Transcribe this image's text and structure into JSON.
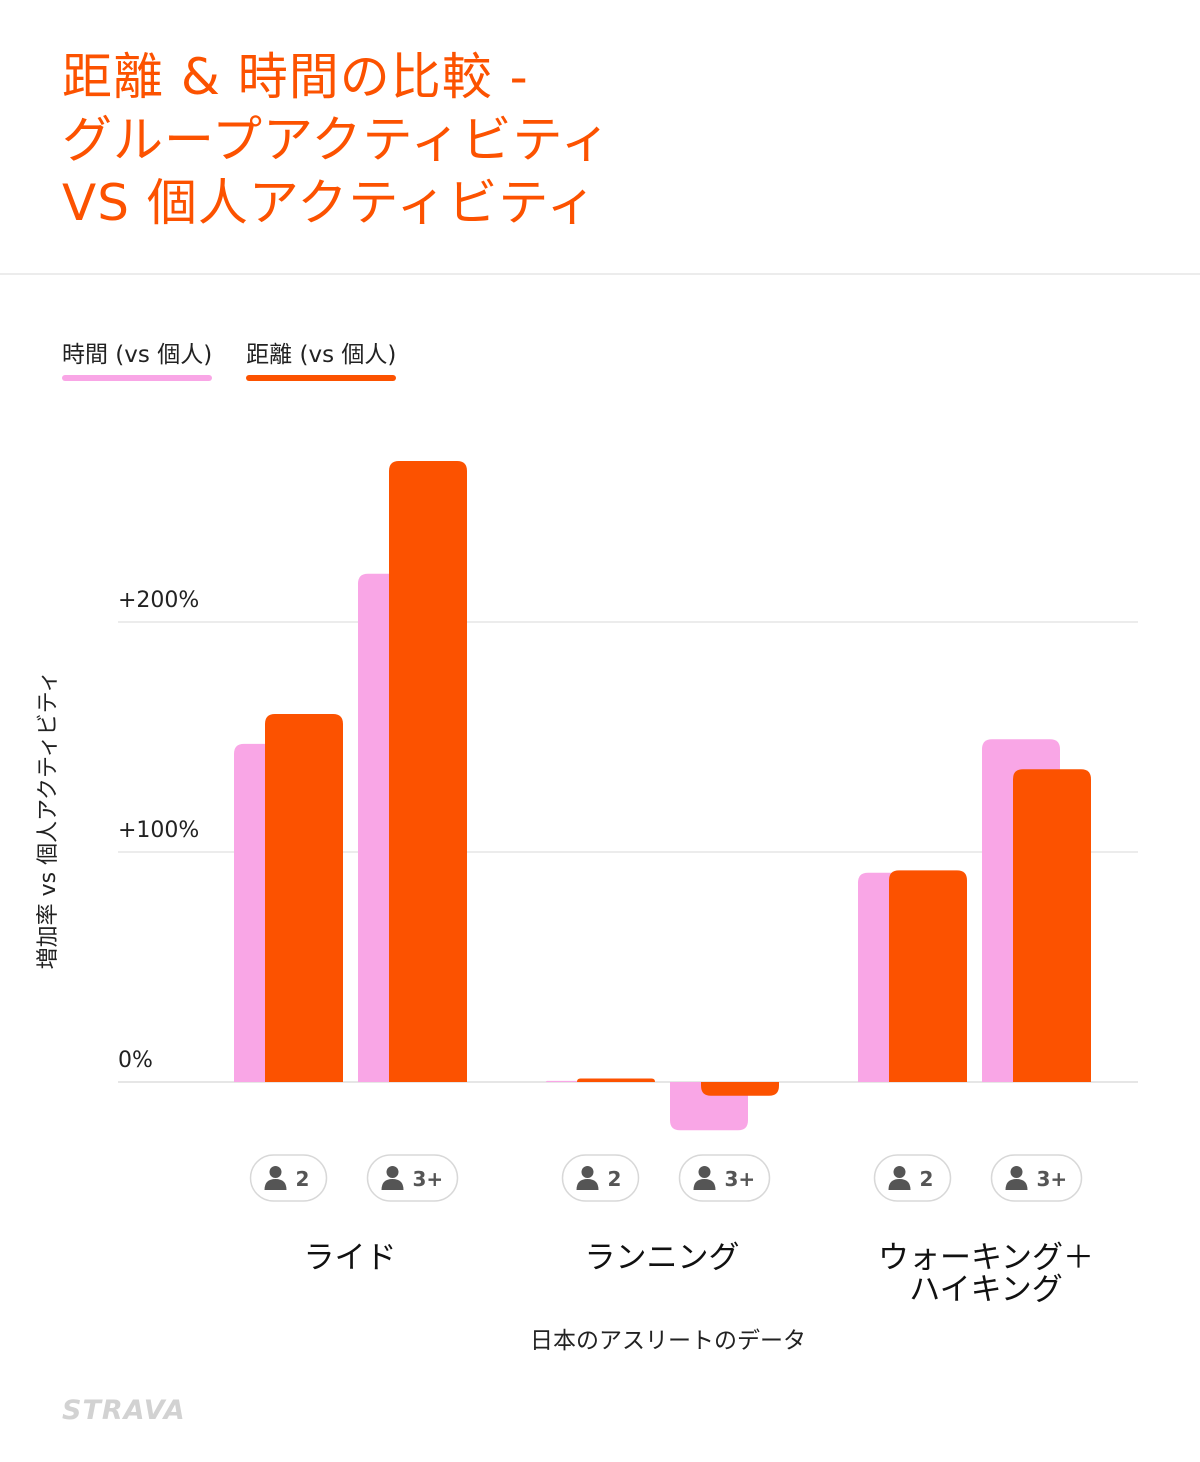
{
  "title_lines": [
    "距離 & 時間の比較 -",
    "グループアクティビティ",
    "VS 個人アクティビティ"
  ],
  "colors": {
    "time": "#f9a6e6",
    "distance": "#fc5200",
    "title": "#fc5200"
  },
  "brand": "STRAVA",
  "chart_data": {
    "type": "bar",
    "title": "距離 & 時間の比較 - グループアクティビティ VS 個人アクティビティ",
    "ylabel": "増加率 vs 個人アクティビティ",
    "xlabel": "日本のアスリートのデータ",
    "y_ticks": [
      "+200%",
      "+100%",
      "0%"
    ],
    "y_tick_values": [
      200,
      100,
      0
    ],
    "ylim": [
      -25,
      270
    ],
    "grid": true,
    "legend": "top-left",
    "groups": [
      {
        "label": "ライド",
        "label_lines": [
          "ライド"
        ],
        "subgroups": [
          "2",
          "3+"
        ]
      },
      {
        "label": "ランニング",
        "label_lines": [
          "ランニング"
        ],
        "subgroups": [
          "2",
          "3+"
        ]
      },
      {
        "label": "ウォーキング＋ハイキング",
        "label_lines": [
          "ウォーキング＋",
          "ハイキング"
        ],
        "subgroups": [
          "2",
          "3+"
        ]
      }
    ],
    "series": [
      {
        "name": "時間 (vs 個人)",
        "color": "#f9a6e6",
        "values": [
          147,
          221,
          0.5,
          -21,
          91,
          149
        ]
      },
      {
        "name": "距離 (vs 個人)",
        "color": "#fc5200",
        "values": [
          160,
          270,
          1.5,
          -6,
          92,
          136
        ]
      }
    ]
  }
}
